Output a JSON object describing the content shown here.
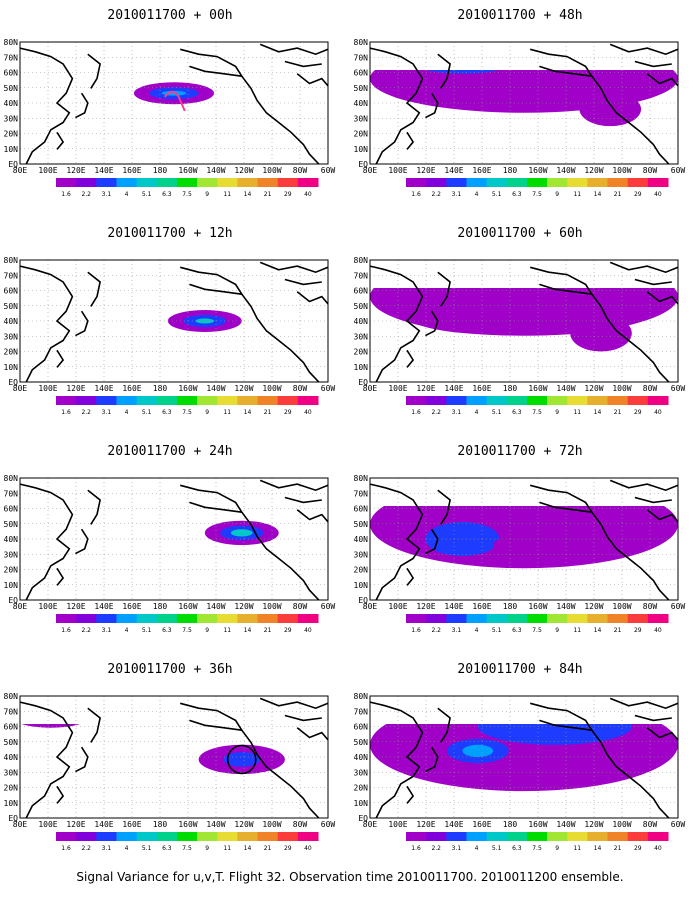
{
  "footer_caption": "Signal Variance for u,v,T. Flight 32. Observation time 2010011700. 2010011200 ensemble.",
  "lat_labels": [
    "80N",
    "70N",
    "60N",
    "50N",
    "40N",
    "30N",
    "20N",
    "10N",
    "EQ"
  ],
  "lon_labels": [
    "80E",
    "100E",
    "120E",
    "140E",
    "160E",
    "180",
    "160W",
    "140W",
    "120W",
    "100W",
    "80W",
    "60W"
  ],
  "colorbar": {
    "labels": [
      "1.6",
      "2.2",
      "3.1",
      "4",
      "5.1",
      "6.3",
      "7.5",
      "9",
      "11",
      "14",
      "21",
      "29",
      "40"
    ],
    "colors": [
      "#a000c8",
      "#8200dc",
      "#1e3cff",
      "#00a0ff",
      "#00c8c8",
      "#00d28c",
      "#00dc00",
      "#a0e632",
      "#e6dc32",
      "#e6af2d",
      "#f08228",
      "#fa3c3c",
      "#f00082"
    ]
  },
  "panels": [
    {
      "title": "2010011700 + 00h"
    },
    {
      "title": "2010011700 + 48h"
    },
    {
      "title": "2010011700 + 12h"
    },
    {
      "title": "2010011700 + 60h"
    },
    {
      "title": "2010011700 + 24h"
    },
    {
      "title": "2010011700 + 72h"
    },
    {
      "title": "2010011700 + 36h"
    },
    {
      "title": "2010011700 + 84h"
    }
  ]
}
